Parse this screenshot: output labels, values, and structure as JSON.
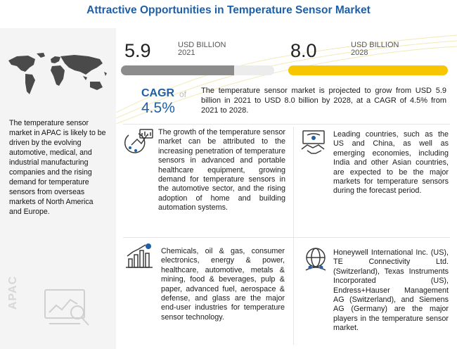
{
  "title": "Attractive Opportunities in Temperature Sensor Market",
  "left_panel": {
    "description": "The temperature sensor market in APAC is likely to be driven by the evolving automotive, medical, and industrial manufacturing companies and the rising demand for temperature sensors from overseas markets of North America and Europe.",
    "region_label": "APAC"
  },
  "market_2021": {
    "value": "5.9",
    "unit": "USD BILLION",
    "year": "2021",
    "bar_color": "#8c8c8c",
    "fill_fraction": 0.74
  },
  "market_2028": {
    "value": "8.0",
    "unit": "USD BILLION",
    "year": "2028",
    "bar_color": "#f7c600",
    "fill_fraction": 1.0
  },
  "cagr": {
    "label": "CAGR",
    "of": "of",
    "value": "4.5%",
    "text": "The temperature sensor market is projected to grow from USD 5.9 billion in 2021 to USD 8.0 billion by 2028, at a CAGR of 4.5% from 2021 to 2028."
  },
  "cards": [
    {
      "icon": "sensor-icon",
      "text": "The growth of the temperature sensor market can be attributed to the increasing penetration of temperature sensors in advanced and portable healthcare equipment, growing demand for temperature sensors in the automotive sector, and the rising adoption of home and building automation systems."
    },
    {
      "icon": "handshake-icon",
      "text": "Leading countries, such as the US and China, as well as emerging economies, including India and other Asian countries, are expected to be the major markets for temperature sensors during the forecast period."
    },
    {
      "icon": "growth-chart-icon",
      "text": "Chemicals, oil & gas, consumer electronics, energy & power, healthcare, automotive, metals & mining, food & beverages, pulp & paper, advanced fuel, aerospace & defense, and glass are the major end-user industries for temperature sensor technology."
    },
    {
      "icon": "globe-people-icon",
      "text": "Honeywell International Inc. (US), TE Connectivity Ltd. (Switzerland), Texas Instruments Incorporated (US), Endress+Hauser Management AG (Switzerland), and Siemens AG (Germany) are the major players in the temperature sensor market."
    }
  ]
}
